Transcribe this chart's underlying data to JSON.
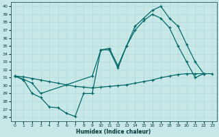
{
  "bg_color": "#c8e8e8",
  "grid_color": "#b0d8d8",
  "line_color": "#006666",
  "xlabel": "Humidex (Indice chaleur)",
  "xlim": [
    -0.5,
    23.5
  ],
  "ylim": [
    25.5,
    40.5
  ],
  "yticks": [
    26,
    27,
    28,
    29,
    30,
    31,
    32,
    33,
    34,
    35,
    36,
    37,
    38,
    39,
    40
  ],
  "xticks": [
    0,
    1,
    2,
    3,
    4,
    5,
    6,
    7,
    8,
    9,
    10,
    11,
    12,
    13,
    14,
    15,
    16,
    17,
    18,
    19,
    20,
    21,
    22,
    23
  ],
  "line1_x": [
    0,
    1,
    2,
    3,
    4,
    5,
    6,
    7,
    8,
    9,
    10,
    11,
    12,
    13,
    14,
    15,
    16,
    17,
    18,
    19,
    20,
    21,
    22
  ],
  "line1_y": [
    31.2,
    30.7,
    29.0,
    28.5,
    27.3,
    27.2,
    26.5,
    26.1,
    29.0,
    29.0,
    34.5,
    34.5,
    32.2,
    35.0,
    37.5,
    38.5,
    39.5,
    40.0,
    38.5,
    37.5,
    35.2,
    33.0,
    31.5
  ],
  "line2_x": [
    0,
    1,
    2,
    3,
    9,
    10,
    11,
    12,
    13,
    14,
    15,
    16,
    17,
    18,
    19,
    20,
    21,
    22
  ],
  "line2_y": [
    31.2,
    30.8,
    30.3,
    29.0,
    31.2,
    34.5,
    34.7,
    32.5,
    35.0,
    37.0,
    38.2,
    39.0,
    38.5,
    37.3,
    35.0,
    33.0,
    31.0,
    31.5
  ],
  "line3_x": [
    0,
    1,
    2,
    3,
    4,
    5,
    6,
    7,
    8,
    9,
    10,
    11,
    12,
    13,
    14,
    15,
    16,
    17,
    18,
    19,
    20,
    21,
    22,
    23
  ],
  "line3_y": [
    31.2,
    31.1,
    30.9,
    30.7,
    30.5,
    30.3,
    30.1,
    29.9,
    29.8,
    29.7,
    29.8,
    29.9,
    30.0,
    30.1,
    30.3,
    30.5,
    30.7,
    31.0,
    31.2,
    31.4,
    31.5,
    31.5,
    31.5,
    31.5
  ]
}
